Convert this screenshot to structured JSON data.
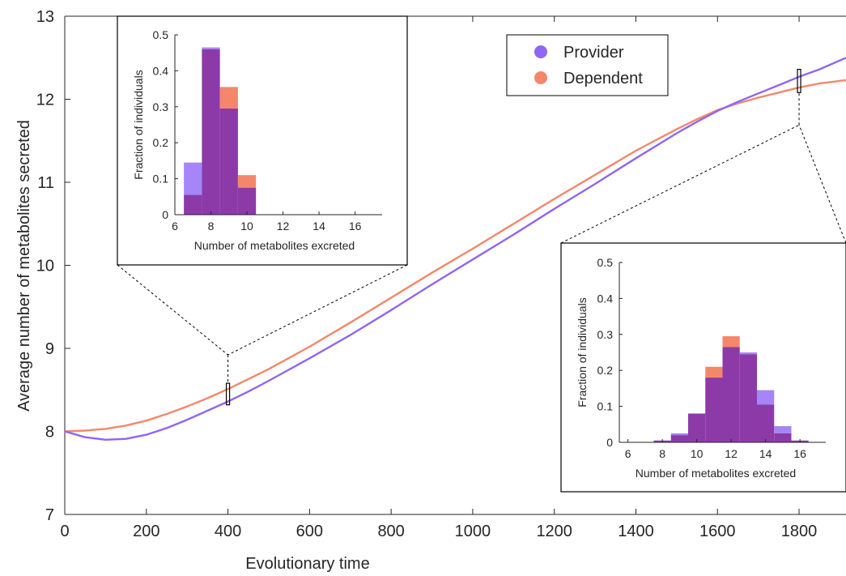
{
  "colors": {
    "provider": "#8f66f5",
    "dependent": "#f4876b",
    "overlap": "#8b3aa8",
    "axis": "#262626"
  },
  "chart_data": {
    "type": "line",
    "xlabel": "Evolutionary time",
    "ylabel": "Average number of metabolites secreted",
    "xlim": [
      0,
      1915
    ],
    "ylim": [
      7,
      13
    ],
    "xticks": [
      0,
      200,
      400,
      600,
      800,
      1000,
      1200,
      1400,
      1600,
      1800
    ],
    "yticks": [
      7,
      8,
      9,
      10,
      11,
      12,
      13
    ],
    "grid": false,
    "legend_position": "top-right",
    "series": [
      {
        "name": "Provider",
        "color_key": "provider",
        "x": [
          0,
          50,
          100,
          150,
          200,
          250,
          300,
          350,
          400,
          450,
          500,
          600,
          700,
          800,
          900,
          1000,
          1100,
          1200,
          1300,
          1400,
          1500,
          1550,
          1600,
          1650,
          1700,
          1750,
          1800,
          1850,
          1915
        ],
        "y": [
          8.0,
          7.93,
          7.9,
          7.91,
          7.96,
          8.04,
          8.14,
          8.25,
          8.36,
          8.48,
          8.61,
          8.88,
          9.16,
          9.46,
          9.77,
          10.07,
          10.37,
          10.68,
          10.98,
          11.29,
          11.59,
          11.73,
          11.86,
          11.97,
          12.07,
          12.17,
          12.27,
          12.36,
          12.5
        ]
      },
      {
        "name": "Dependent",
        "color_key": "dependent",
        "x": [
          0,
          50,
          100,
          150,
          200,
          250,
          300,
          350,
          400,
          450,
          500,
          600,
          700,
          800,
          900,
          1000,
          1100,
          1200,
          1300,
          1400,
          1500,
          1550,
          1600,
          1650,
          1700,
          1750,
          1800,
          1850,
          1915
        ],
        "y": [
          8.0,
          8.01,
          8.03,
          8.07,
          8.13,
          8.21,
          8.3,
          8.4,
          8.51,
          8.63,
          8.75,
          9.02,
          9.31,
          9.61,
          9.91,
          10.2,
          10.5,
          10.8,
          11.09,
          11.38,
          11.64,
          11.76,
          11.87,
          11.95,
          12.02,
          12.08,
          12.14,
          12.19,
          12.23
        ]
      }
    ],
    "markers": [
      {
        "x": 400,
        "y_low": 8.32,
        "y_high": 8.58
      },
      {
        "x": 1800,
        "y_low": 12.08,
        "y_high": 12.36
      }
    ],
    "insets": [
      {
        "id": "left",
        "type": "bar",
        "xlabel": "Number of metabolites excreted",
        "ylabel": "Fraction of individuals",
        "xlim": [
          6,
          17.5
        ],
        "ylim": [
          0,
          0.5
        ],
        "xticks": [
          "6",
          "8",
          "10",
          "12",
          "14",
          "16"
        ],
        "yticks": [
          "0",
          "0.1",
          "0.2",
          "0.3",
          "0.4",
          "0.5"
        ],
        "bins": [
          7,
          8,
          9,
          10,
          11
        ],
        "series": [
          {
            "name": "Provider",
            "values": [
              0.145,
              0.465,
              0.295,
              0.075,
              0.0
            ]
          },
          {
            "name": "Dependent",
            "values": [
              0.055,
              0.46,
              0.355,
              0.11,
              0.0
            ]
          }
        ]
      },
      {
        "id": "right",
        "type": "bar",
        "xlabel": "Number of metabolites excreted",
        "ylabel": "Fraction of individuals",
        "xlim": [
          5.5,
          17.5
        ],
        "ylim": [
          0,
          0.5
        ],
        "xticks": [
          "6",
          "8",
          "10",
          "12",
          "14",
          "16"
        ],
        "yticks": [
          "0",
          "0.1",
          "0.2",
          "0.3",
          "0.4",
          "0.5"
        ],
        "bins": [
          8,
          9,
          10,
          11,
          12,
          13,
          14,
          15,
          16
        ],
        "series": [
          {
            "name": "Provider",
            "values": [
              0.005,
              0.025,
              0.08,
              0.18,
              0.265,
              0.25,
              0.145,
              0.045,
              0.005
            ]
          },
          {
            "name": "Dependent",
            "values": [
              0.005,
              0.02,
              0.08,
              0.21,
              0.295,
              0.245,
              0.105,
              0.025,
              0.005
            ]
          }
        ]
      }
    ]
  }
}
